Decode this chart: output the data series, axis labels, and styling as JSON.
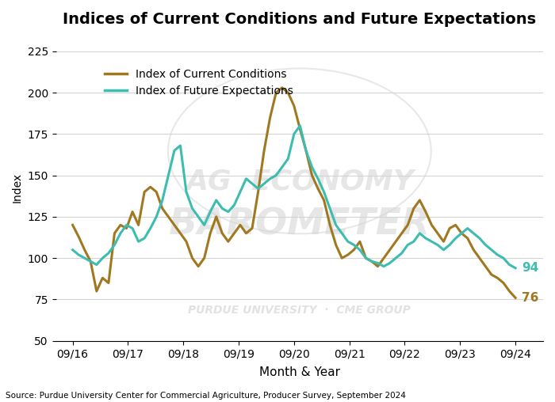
{
  "title": "Indices of Current Conditions and Future Expectations",
  "xlabel": "Month & Year",
  "ylabel": "Index",
  "source": "Source: Purdue University Center for Commercial Agriculture, Producer Survey, September 2024",
  "ylim": [
    50,
    235
  ],
  "yticks": [
    50,
    75,
    100,
    125,
    150,
    175,
    200,
    225
  ],
  "color_current": "#A07820",
  "color_future": "#3DBDB0",
  "end_label_current": "76",
  "end_label_future": "94",
  "watermark_line1": "AG  ECONOMY",
  "watermark_line2": "BAROMETER",
  "watermark_line3": "PURDUE UNIVERSITY  ·  CME GROUP",
  "xtick_labels": [
    "09/16",
    "09/17",
    "09/18",
    "09/19",
    "09/20",
    "09/21",
    "09/22",
    "09/23",
    "09/24"
  ],
  "current_conditions": [
    120,
    113,
    105,
    98,
    80,
    88,
    85,
    115,
    120,
    118,
    128,
    120,
    140,
    143,
    140,
    130,
    125,
    120,
    115,
    110,
    100,
    95,
    100,
    115,
    125,
    115,
    110,
    115,
    120,
    115,
    118,
    140,
    165,
    185,
    200,
    203,
    200,
    192,
    178,
    165,
    150,
    142,
    135,
    120,
    108,
    100,
    102,
    105,
    110,
    100,
    98,
    95,
    100,
    105,
    110,
    115,
    120,
    130,
    135,
    128,
    120,
    115,
    110,
    118,
    120,
    115,
    112,
    105,
    100,
    95,
    90,
    88,
    85,
    80,
    76
  ],
  "future_expectations": [
    105,
    102,
    100,
    98,
    96,
    100,
    103,
    108,
    115,
    120,
    118,
    110,
    112,
    118,
    125,
    135,
    150,
    165,
    168,
    140,
    130,
    125,
    120,
    128,
    135,
    130,
    128,
    132,
    140,
    148,
    145,
    142,
    145,
    148,
    150,
    155,
    160,
    175,
    180,
    165,
    155,
    148,
    140,
    130,
    120,
    115,
    110,
    108,
    105,
    100,
    98,
    97,
    95,
    97,
    100,
    103,
    108,
    110,
    115,
    112,
    110,
    108,
    105,
    108,
    112,
    115,
    118,
    115,
    112,
    108,
    105,
    102,
    100,
    96,
    94
  ]
}
